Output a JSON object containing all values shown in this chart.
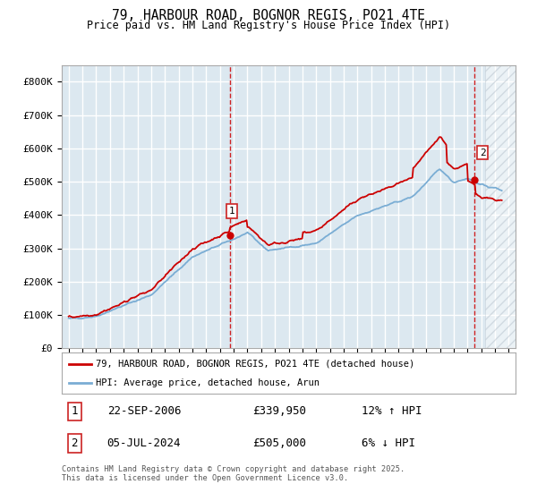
{
  "title": "79, HARBOUR ROAD, BOGNOR REGIS, PO21 4TE",
  "subtitle": "Price paid vs. HM Land Registry's House Price Index (HPI)",
  "ylim": [
    0,
    850000
  ],
  "xlim": [
    1994.5,
    2027.5
  ],
  "yticks": [
    0,
    100000,
    200000,
    300000,
    400000,
    500000,
    600000,
    700000,
    800000
  ],
  "ytick_labels": [
    "£0",
    "£100K",
    "£200K",
    "£300K",
    "£400K",
    "£500K",
    "£600K",
    "£700K",
    "£800K"
  ],
  "sale1_x": 2006.72,
  "sale1_y": 339950,
  "sale2_x": 2024.51,
  "sale2_y": 505000,
  "red_line_color": "#cc0000",
  "blue_line_color": "#7aadd4",
  "background_color": "#dce8f0",
  "grid_color": "#ffffff",
  "vline_color": "#cc0000",
  "legend_label_red": "79, HARBOUR ROAD, BOGNOR REGIS, PO21 4TE (detached house)",
  "legend_label_blue": "HPI: Average price, detached house, Arun",
  "annotation1_date": "22-SEP-2006",
  "annotation1_price": "£339,950",
  "annotation1_hpi": "12% ↑ HPI",
  "annotation2_date": "05-JUL-2024",
  "annotation2_price": "£505,000",
  "annotation2_hpi": "6% ↓ HPI",
  "footer": "Contains HM Land Registry data © Crown copyright and database right 2025.\nThis data is licensed under the Open Government Licence v3.0."
}
